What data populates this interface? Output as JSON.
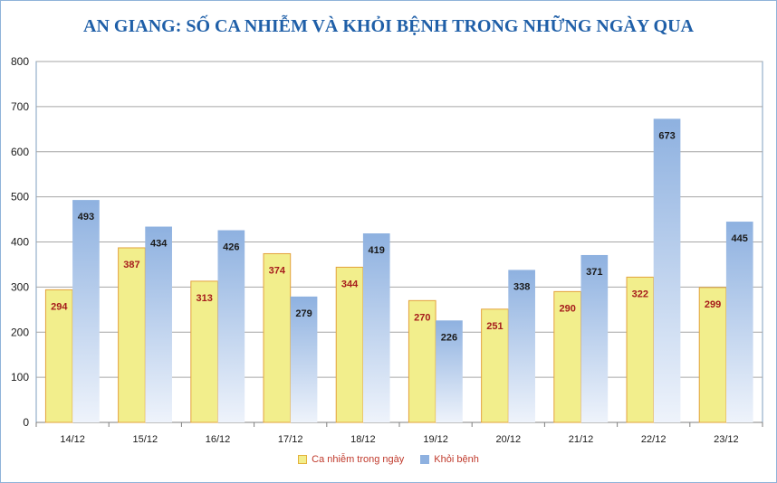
{
  "chart_data": {
    "type": "bar",
    "title": "AN GIANG: SỐ CA NHIỄM VÀ KHỎI BỆNH TRONG NHỮNG NGÀY QUA",
    "categories": [
      "14/12",
      "15/12",
      "16/12",
      "17/12",
      "18/12",
      "19/12",
      "20/12",
      "21/12",
      "22/12",
      "23/12"
    ],
    "series": [
      {
        "name": "Ca nhiễm trong ngày",
        "values": [
          294,
          387,
          313,
          374,
          344,
          270,
          251,
          290,
          322,
          299
        ],
        "color": "#f2ee8c"
      },
      {
        "name": "Khỏi bệnh",
        "values": [
          493,
          434,
          426,
          279,
          419,
          226,
          338,
          371,
          673,
          445
        ],
        "color": "#8eb1e0"
      }
    ],
    "ylim": [
      0,
      800
    ],
    "yticks": [
      0,
      100,
      200,
      300,
      400,
      500,
      600,
      700,
      800
    ],
    "grid": true,
    "legend": "bottom",
    "xlabel": "",
    "ylabel": ""
  }
}
